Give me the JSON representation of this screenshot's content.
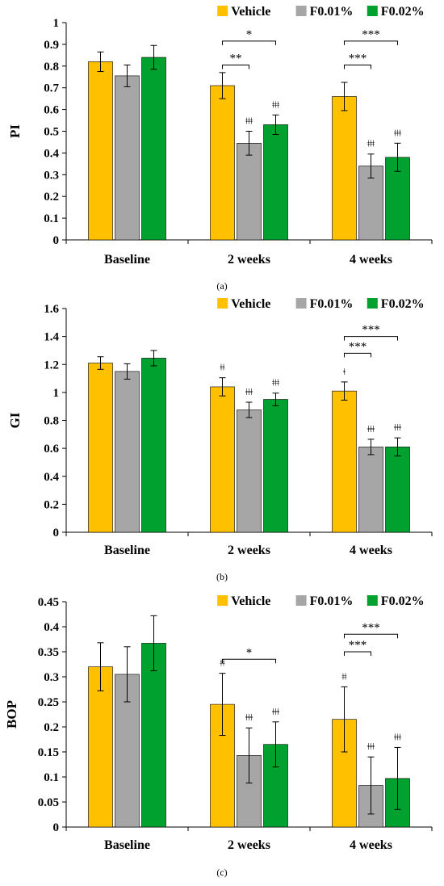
{
  "colors": {
    "Vehicle": "#FFC000",
    "F0.01%": "#A6A6A6",
    "F0.02%": "#00A12E"
  },
  "chart_data": [
    {
      "type": "bar",
      "panel_label": "(a)",
      "ylabel": "PI",
      "ylim": [
        0,
        1
      ],
      "yticks": [
        0,
        0.1,
        0.2,
        0.3,
        0.4,
        0.5,
        0.6,
        0.7,
        0.8,
        0.9,
        1
      ],
      "ytick_labels": [
        "0",
        "0.1",
        "0.2",
        "0.3",
        "0.4",
        "0.5",
        "0.6",
        "0.7",
        "0.8",
        "0.9",
        "1"
      ],
      "categories": [
        "Baseline",
        "2 weeks",
        "4 weeks"
      ],
      "legend_position": "top-right",
      "series": [
        {
          "name": "Vehicle",
          "values": [
            0.82,
            0.71,
            0.66
          ],
          "errors": [
            0.045,
            0.06,
            0.065
          ],
          "marks": [
            "",
            "",
            ""
          ]
        },
        {
          "name": "F0.01%",
          "values": [
            0.755,
            0.445,
            0.34
          ],
          "errors": [
            0.05,
            0.055,
            0.055
          ],
          "marks": [
            "",
            "ǂǂǂ",
            "ǂǂǂ"
          ]
        },
        {
          "name": "F0.02%",
          "values": [
            0.84,
            0.53,
            0.38
          ],
          "errors": [
            0.055,
            0.045,
            0.065
          ],
          "marks": [
            "",
            "ǂǂǂ",
            "ǂǂǂ"
          ]
        }
      ],
      "brackets": [
        {
          "category": 1,
          "from": 0,
          "to": 1,
          "label": "**",
          "level": 0.805
        },
        {
          "category": 1,
          "from": 0,
          "to": 2,
          "label": "*",
          "level": 0.915
        },
        {
          "category": 2,
          "from": 0,
          "to": 1,
          "label": "***",
          "level": 0.805
        },
        {
          "category": 2,
          "from": 0,
          "to": 2,
          "label": "***",
          "level": 0.915
        }
      ]
    },
    {
      "type": "bar",
      "panel_label": "(b)",
      "ylabel": "GI",
      "ylim": [
        0,
        1.6
      ],
      "yticks": [
        0,
        0.2,
        0.4,
        0.6,
        0.8,
        1,
        1.2,
        1.4,
        1.6
      ],
      "ytick_labels": [
        "0",
        "0.2",
        "0.4",
        "0.6",
        "0.8",
        "1",
        "1.2",
        "1.4",
        "1.6"
      ],
      "categories": [
        "Baseline",
        "2 weeks",
        "4 weeks"
      ],
      "legend_position": "top-right",
      "series": [
        {
          "name": "Vehicle",
          "values": [
            1.21,
            1.04,
            1.01
          ],
          "errors": [
            0.045,
            0.065,
            0.065
          ],
          "marks": [
            "",
            "ǂǂ",
            "ǂ"
          ]
        },
        {
          "name": "F0.01%",
          "values": [
            1.15,
            0.875,
            0.61
          ],
          "errors": [
            0.055,
            0.055,
            0.055
          ],
          "marks": [
            "",
            "ǂǂǂ",
            "ǂǂǂ"
          ]
        },
        {
          "name": "F0.02%",
          "values": [
            1.245,
            0.95,
            0.61
          ],
          "errors": [
            0.055,
            0.045,
            0.065
          ],
          "marks": [
            "",
            "ǂǂǂ",
            "ǂǂǂ"
          ]
        }
      ],
      "brackets": [
        {
          "category": 2,
          "from": 0,
          "to": 1,
          "label": "***",
          "level": 1.28
        },
        {
          "category": 2,
          "from": 0,
          "to": 2,
          "label": "***",
          "level": 1.4
        }
      ]
    },
    {
      "type": "bar",
      "panel_label": "(c)",
      "ylabel": "BOP",
      "ylim": [
        0,
        0.45
      ],
      "yticks": [
        0,
        0.05,
        0.1,
        0.15,
        0.2,
        0.25,
        0.3,
        0.35,
        0.4,
        0.45
      ],
      "ytick_labels": [
        "0",
        "0.05",
        "0.1",
        "0.15",
        "0.2",
        "0.25",
        "0.3",
        "0.35",
        "0.4",
        "0.45"
      ],
      "categories": [
        "Baseline",
        "2 weeks",
        "4 weeks"
      ],
      "legend_position": "top-right",
      "series": [
        {
          "name": "Vehicle",
          "values": [
            0.32,
            0.245,
            0.215
          ],
          "errors": [
            0.048,
            0.062,
            0.065
          ],
          "marks": [
            "",
            "ǂǂ",
            "ǂǂ"
          ]
        },
        {
          "name": "F0.01%",
          "values": [
            0.305,
            0.143,
            0.083
          ],
          "errors": [
            0.055,
            0.055,
            0.057
          ],
          "marks": [
            "",
            "ǂǂǂ",
            "ǂǂǂ"
          ]
        },
        {
          "name": "F0.02%",
          "values": [
            0.367,
            0.165,
            0.097
          ],
          "errors": [
            0.055,
            0.045,
            0.062
          ],
          "marks": [
            "",
            "ǂǂǂ",
            "ǂǂǂ"
          ]
        }
      ],
      "brackets": [
        {
          "category": 1,
          "from": 0,
          "to": 2,
          "label": "*",
          "level": 0.335
        },
        {
          "category": 2,
          "from": 0,
          "to": 1,
          "label": "***",
          "level": 0.35
        },
        {
          "category": 2,
          "from": 0,
          "to": 2,
          "label": "***",
          "level": 0.385
        }
      ]
    }
  ]
}
